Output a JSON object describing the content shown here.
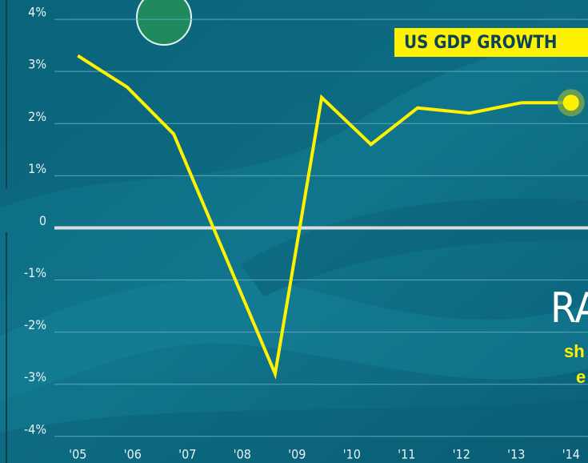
{
  "chart_data": {
    "type": "line",
    "title": "US GDP GROWTH",
    "x": [
      2005,
      2005.9,
      2006.75,
      2008.6,
      2009.45,
      2010.35,
      2011.2,
      2012.15,
      2013.1,
      2014
    ],
    "series": [
      {
        "name": "US GDP GROWTH",
        "color": "#fff200",
        "values": [
          3.3,
          2.7,
          1.8,
          -2.8,
          2.5,
          1.6,
          2.3,
          2.2,
          2.4,
          2.4
        ]
      }
    ],
    "xlim": [
      2003.58,
      2014.31
    ],
    "ylim": [
      -4.51,
      4.37
    ],
    "xticks": [
      {
        "value": 2005,
        "label": "'05"
      },
      {
        "value": 2006,
        "label": "'06"
      },
      {
        "value": 2007,
        "label": "'07"
      },
      {
        "value": 2008,
        "label": "'08"
      },
      {
        "value": 2009,
        "label": "'09"
      },
      {
        "value": 2010,
        "label": "'10"
      },
      {
        "value": 2011,
        "label": "'11"
      },
      {
        "value": 2012,
        "label": "'12"
      },
      {
        "value": 2013,
        "label": "'13"
      },
      {
        "value": 2014,
        "label": "'14"
      }
    ],
    "yticks": [
      {
        "value": 4,
        "label": "4%"
      },
      {
        "value": 3,
        "label": "3%"
      },
      {
        "value": 2,
        "label": "2%"
      },
      {
        "value": 1,
        "label": "1%"
      },
      0,
      {
        "value": -1,
        "label": "-1%"
      },
      {
        "value": -2,
        "label": "-2%"
      },
      {
        "value": -3,
        "label": "-3%"
      },
      {
        "value": -4,
        "label": "-4%"
      }
    ],
    "grid": true,
    "annotations": [
      "RA",
      "sh",
      "e"
    ]
  }
}
